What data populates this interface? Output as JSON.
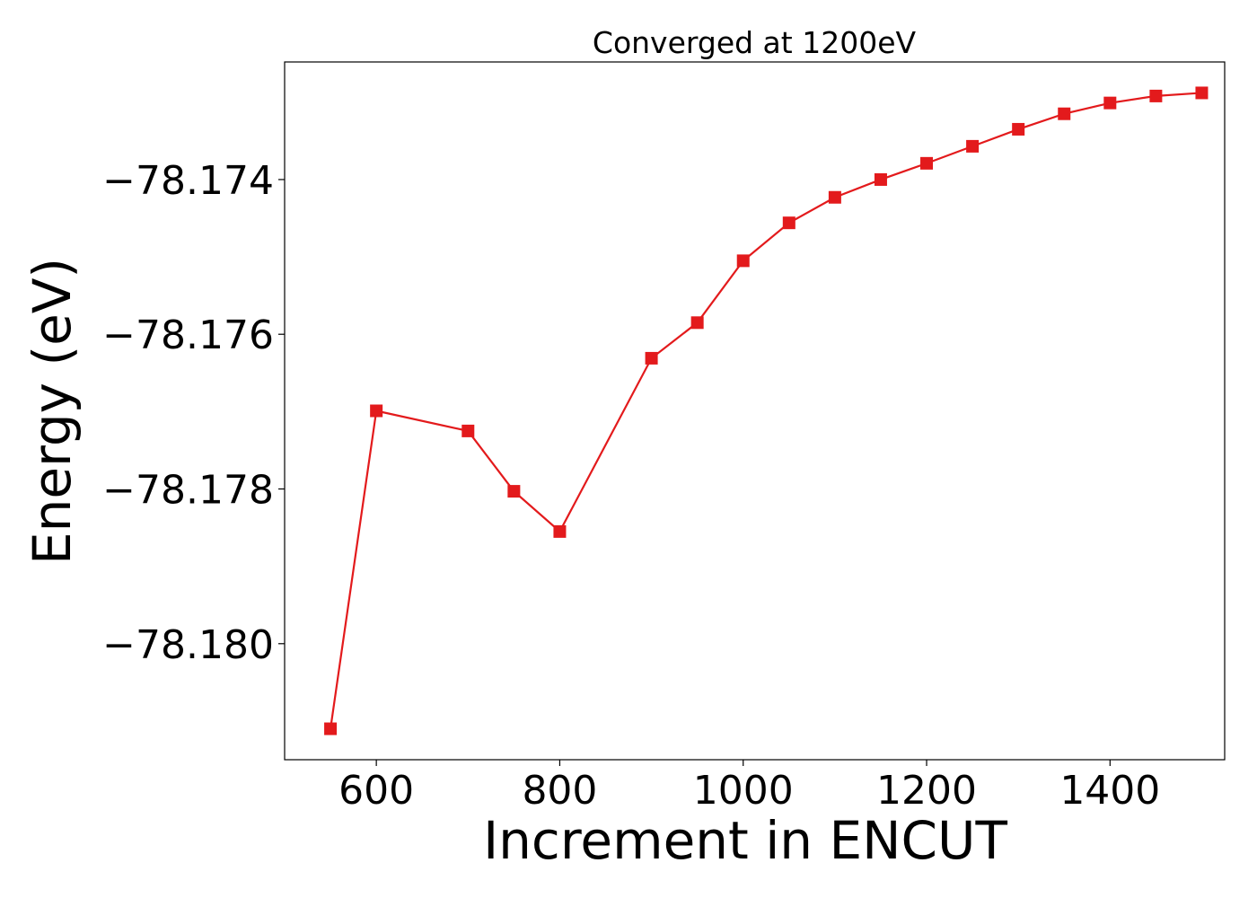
{
  "chart_data": {
    "type": "line",
    "title": "Converged at 1200eV",
    "xlabel": "Increment in ENCUT",
    "ylabel": "Energy (eV)",
    "xlim": [
      500,
      1525
    ],
    "ylim": [
      -78.1815,
      -78.17248
    ],
    "xticks": [
      600,
      800,
      1000,
      1200,
      1400
    ],
    "xtick_labels": [
      "600",
      "800",
      "1000",
      "1200",
      "1400"
    ],
    "yticks": [
      -78.174,
      -78.176,
      -78.178,
      -78.18
    ],
    "ytick_labels": [
      "−78.174",
      "−78.176",
      "−78.178",
      "−78.180"
    ],
    "grid": false,
    "series": [
      {
        "color": "#e31a1c",
        "marker": "square",
        "x": [
          550,
          600,
          700,
          750,
          800,
          900,
          950,
          1000,
          1050,
          1100,
          1150,
          1200,
          1250,
          1300,
          1350,
          1400,
          1450,
          1500
        ],
        "y": [
          -78.1811,
          -78.17699,
          -78.17725,
          -78.17803,
          -78.17855,
          -78.17631,
          -78.17585,
          -78.17505,
          -78.17456,
          -78.17423,
          -78.174,
          -78.17379,
          -78.17357,
          -78.17335,
          -78.17315,
          -78.17301,
          -78.17292,
          -78.17288
        ]
      }
    ]
  }
}
